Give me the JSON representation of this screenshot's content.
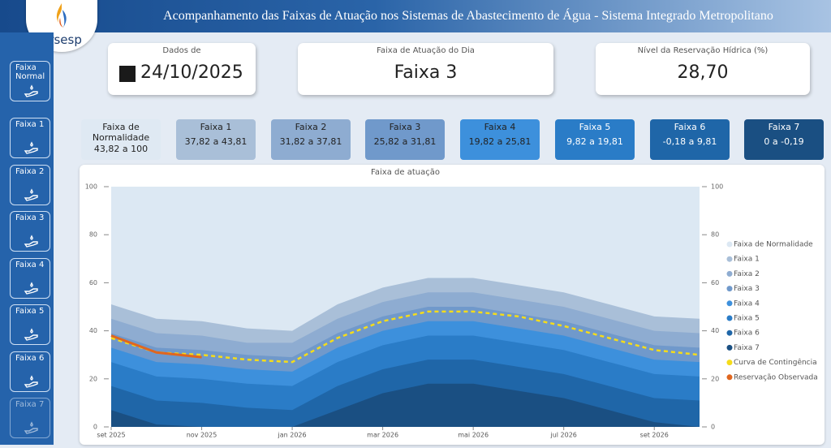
{
  "header": {
    "title": "Acompanhamento das Faixas de Atuação nos Sistemas de Abastecimento de Água - Sistema Integrado Metropolitano",
    "logo": "arsesp"
  },
  "sidebar": [
    "Faixa Normal",
    "Faixa 1",
    "Faixa 2",
    "Faixa 3",
    "Faixa 4",
    "Faixa 5",
    "Faixa 6",
    "Faixa 7"
  ],
  "cards": [
    {
      "label": "Dados de",
      "value": "24/10/2025"
    },
    {
      "label": "Faixa de Atuação do Dia",
      "value": "Faixa 3"
    },
    {
      "label": "Nível da Reservação Hídrica (%)",
      "value": "28,70"
    }
  ],
  "bands": [
    {
      "name": "Faixa de Normalidade",
      "range": "43,82 a 100",
      "color": "#dfe9f3",
      "text_color": "#222222"
    },
    {
      "name": "Faixa 1",
      "range": "37,82 a 43,81",
      "color": "#a9bfd8",
      "text_color": "#222222"
    },
    {
      "name": "Faixa 2",
      "range": "31,82 a 37,81",
      "color": "#8eacd1",
      "text_color": "#222222"
    },
    {
      "name": "Faixa 3",
      "range": "25,82 a 31,81",
      "color": "#7099cb",
      "text_color": "#222222"
    },
    {
      "name": "Faixa 4",
      "range": "19,82 a 25,81",
      "color": "#3d90dc",
      "text_color": "#222222"
    },
    {
      "name": "Faixa 5",
      "range": "9,82 a 19,81",
      "color": "#2a7cc7",
      "text_color": "#ffffff"
    },
    {
      "name": "Faixa 6",
      "range": "-0,18 a 9,81",
      "color": "#1f66a8",
      "text_color": "#ffffff"
    },
    {
      "name": "Faixa 7",
      "range": "0 a -0,19",
      "color": "#1a4f82",
      "text_color": "#ffffff"
    }
  ],
  "chart_data": {
    "type": "area",
    "title": "Faixa de atuação",
    "categories": [
      "set 2025",
      null,
      "nov 2025",
      null,
      "jan 2026",
      null,
      "mar 2026",
      null,
      "mai 2026",
      null,
      "jul 2026",
      null,
      "set 2026",
      null
    ],
    "ylim": [
      0,
      100
    ],
    "yticks": [
      0,
      20,
      40,
      60,
      80,
      100
    ],
    "legend": "right",
    "series": [
      {
        "name": "Faixa de Normalidade",
        "type": "area",
        "color": "#dce8f3",
        "values": [
          100,
          100,
          100,
          100,
          100,
          100,
          100,
          100,
          100,
          100,
          100,
          100,
          100,
          100
        ]
      },
      {
        "name": "Faixa 1",
        "type": "area",
        "color": "#a9bfd8",
        "values": [
          51,
          45,
          44,
          41,
          40,
          51,
          58,
          62,
          62,
          59,
          56,
          51,
          46,
          45
        ]
      },
      {
        "name": "Faixa 2",
        "type": "area",
        "color": "#8eacd1",
        "values": [
          45,
          39,
          38,
          35,
          35,
          45,
          52,
          56,
          56,
          53,
          50,
          45,
          40,
          39
        ]
      },
      {
        "name": "Faixa 3",
        "type": "area",
        "color": "#7099cb",
        "values": [
          39,
          33,
          32,
          30,
          29,
          39,
          46,
          50,
          50,
          47,
          44,
          39,
          34,
          33
        ]
      },
      {
        "name": "Faixa 4",
        "type": "area",
        "color": "#3d90dc",
        "values": [
          33,
          27,
          26,
          24,
          23,
          33,
          40,
          44,
          44,
          41,
          38,
          33,
          28,
          27
        ]
      },
      {
        "name": "Faixa 5",
        "type": "area",
        "color": "#2a7cc7",
        "values": [
          27,
          21,
          20,
          18,
          17,
          27,
          34,
          38,
          38,
          35,
          32,
          27,
          22,
          21
        ]
      },
      {
        "name": "Faixa 6",
        "type": "area",
        "color": "#1f66a8",
        "values": [
          17,
          11,
          10,
          8,
          7,
          17,
          24,
          28,
          28,
          25,
          22,
          17,
          12,
          11
        ]
      },
      {
        "name": "Faixa 7",
        "type": "area",
        "color": "#1a4f82",
        "values": [
          7,
          1,
          0,
          0,
          0,
          7,
          14,
          18,
          18,
          15,
          12,
          7,
          2,
          0
        ]
      },
      {
        "name": "Curva de Contingência",
        "type": "line",
        "dashed": true,
        "color": "#f5dc1a",
        "values": [
          37,
          31,
          30,
          28,
          27,
          37,
          44,
          48,
          48,
          46,
          42,
          37,
          32,
          30
        ]
      },
      {
        "name": "Reservação Observada",
        "type": "line",
        "dashed": false,
        "color": "#e0661f",
        "values": [
          38,
          31,
          29,
          null,
          null,
          null,
          null,
          null,
          null,
          null,
          null,
          null,
          null,
          null
        ]
      }
    ]
  }
}
